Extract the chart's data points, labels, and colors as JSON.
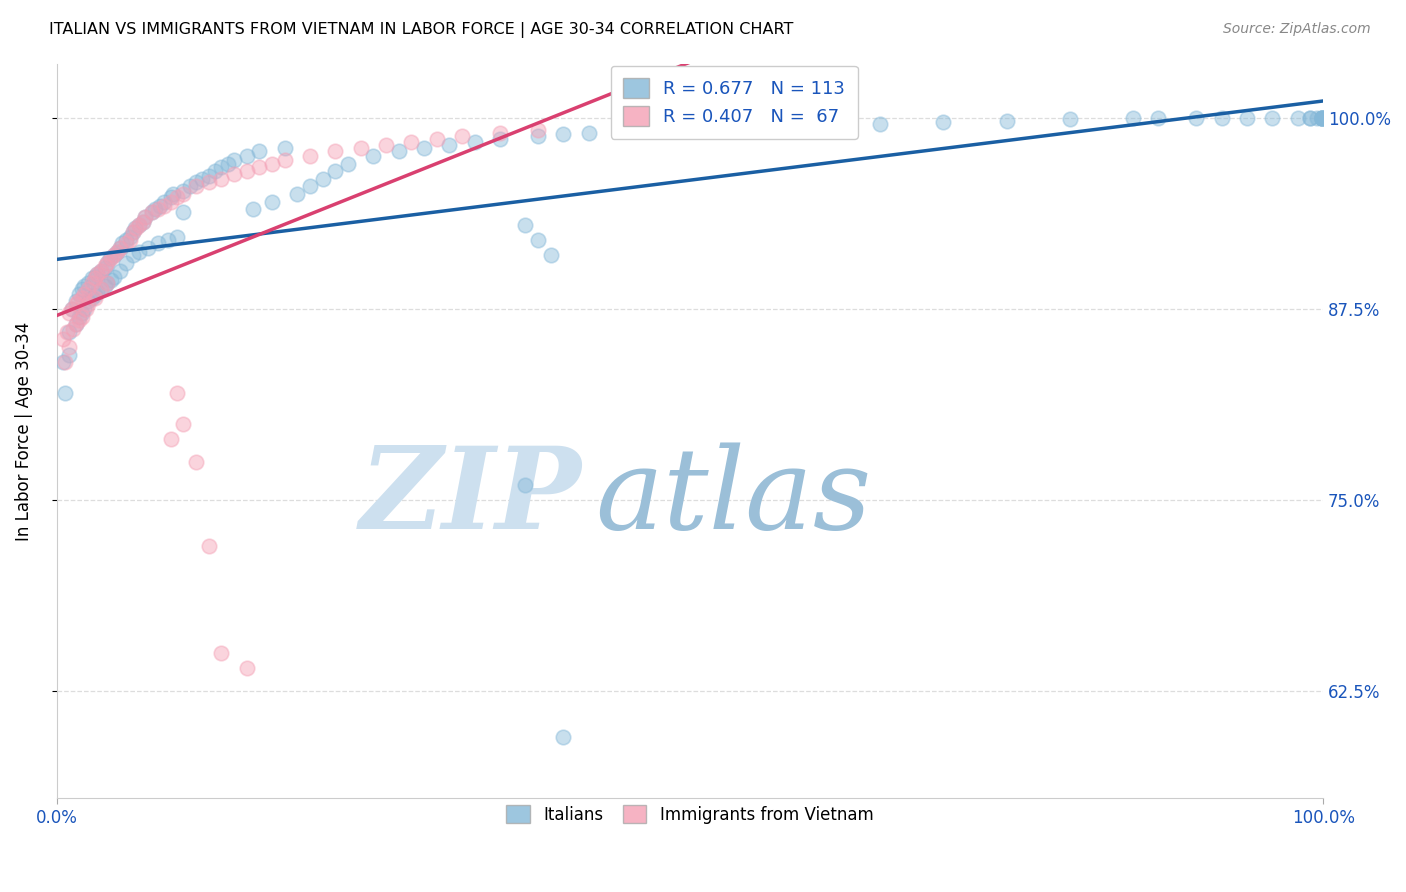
{
  "title": "ITALIAN VS IMMIGRANTS FROM VIETNAM IN LABOR FORCE | AGE 30-34 CORRELATION CHART",
  "source": "Source: ZipAtlas.com",
  "ylabel": "In Labor Force | Age 30-34",
  "ytick_vals": [
    0.625,
    0.75,
    0.875,
    1.0
  ],
  "ytick_labels": [
    "62.5%",
    "75.0%",
    "87.5%",
    "100.0%"
  ],
  "xtick_labels": [
    "0.0%",
    "100.0%"
  ],
  "legend_italians": "Italians",
  "legend_vietnam": "Immigrants from Vietnam",
  "blue_scatter_color": "#85b8d8",
  "pink_scatter_color": "#f4a0b5",
  "blue_line_color": "#1a5fa3",
  "pink_line_color": "#d94070",
  "legend_text_color": "#1a55bb",
  "axis_tick_color": "#1a55bb",
  "R_blue": 0.677,
  "N_blue": 113,
  "R_pink": 0.407,
  "N_pink": 67,
  "xlim": [
    0.0,
    1.0
  ],
  "ylim": [
    0.555,
    1.035
  ],
  "grid_color": "#dddddd",
  "blue_x": [
    0.005,
    0.007,
    0.01,
    0.01,
    0.012,
    0.015,
    0.015,
    0.018,
    0.018,
    0.02,
    0.02,
    0.022,
    0.022,
    0.025,
    0.025,
    0.028,
    0.028,
    0.03,
    0.03,
    0.032,
    0.032,
    0.035,
    0.035,
    0.038,
    0.038,
    0.04,
    0.04,
    0.042,
    0.043,
    0.045,
    0.045,
    0.048,
    0.05,
    0.05,
    0.052,
    0.055,
    0.055,
    0.058,
    0.06,
    0.06,
    0.062,
    0.065,
    0.065,
    0.068,
    0.07,
    0.072,
    0.075,
    0.078,
    0.08,
    0.082,
    0.085,
    0.088,
    0.09,
    0.092,
    0.095,
    0.1,
    0.1,
    0.105,
    0.11,
    0.115,
    0.12,
    0.125,
    0.13,
    0.135,
    0.14,
    0.15,
    0.155,
    0.16,
    0.17,
    0.18,
    0.19,
    0.2,
    0.21,
    0.22,
    0.23,
    0.25,
    0.27,
    0.29,
    0.31,
    0.33,
    0.35,
    0.38,
    0.4,
    0.42,
    0.45,
    0.48,
    0.51,
    0.6,
    0.65,
    0.7,
    0.75,
    0.8,
    0.85,
    0.87,
    0.9,
    0.92,
    0.94,
    0.96,
    0.98,
    0.99,
    0.99,
    0.995,
    0.999,
    0.999,
    0.999,
    0.999,
    0.999,
    0.999,
    0.37,
    0.37,
    0.38,
    0.39,
    0.4
  ],
  "blue_y": [
    0.84,
    0.82,
    0.86,
    0.845,
    0.875,
    0.88,
    0.865,
    0.885,
    0.87,
    0.888,
    0.872,
    0.89,
    0.875,
    0.892,
    0.88,
    0.895,
    0.882,
    0.896,
    0.884,
    0.898,
    0.886,
    0.9,
    0.888,
    0.902,
    0.89,
    0.905,
    0.892,
    0.908,
    0.894,
    0.91,
    0.896,
    0.912,
    0.915,
    0.9,
    0.918,
    0.92,
    0.905,
    0.922,
    0.925,
    0.91,
    0.928,
    0.93,
    0.912,
    0.932,
    0.935,
    0.915,
    0.938,
    0.94,
    0.918,
    0.942,
    0.945,
    0.92,
    0.948,
    0.95,
    0.922,
    0.952,
    0.938,
    0.955,
    0.958,
    0.96,
    0.962,
    0.965,
    0.968,
    0.97,
    0.972,
    0.975,
    0.94,
    0.978,
    0.945,
    0.98,
    0.95,
    0.955,
    0.96,
    0.965,
    0.97,
    0.975,
    0.978,
    0.98,
    0.982,
    0.984,
    0.986,
    0.988,
    0.989,
    0.99,
    0.992,
    0.993,
    0.994,
    0.995,
    0.996,
    0.997,
    0.998,
    0.999,
    1.0,
    1.0,
    1.0,
    1.0,
    1.0,
    1.0,
    1.0,
    1.0,
    1.0,
    1.0,
    1.0,
    1.0,
    1.0,
    1.0,
    1.0,
    1.0,
    0.76,
    0.93,
    0.92,
    0.91,
    0.595
  ],
  "pink_x": [
    0.005,
    0.007,
    0.008,
    0.01,
    0.01,
    0.012,
    0.013,
    0.015,
    0.015,
    0.017,
    0.018,
    0.02,
    0.02,
    0.022,
    0.023,
    0.025,
    0.025,
    0.028,
    0.03,
    0.03,
    0.032,
    0.035,
    0.035,
    0.038,
    0.04,
    0.04,
    0.043,
    0.045,
    0.048,
    0.05,
    0.055,
    0.058,
    0.06,
    0.063,
    0.065,
    0.068,
    0.07,
    0.075,
    0.08,
    0.085,
    0.09,
    0.095,
    0.1,
    0.11,
    0.12,
    0.13,
    0.14,
    0.15,
    0.16,
    0.17,
    0.18,
    0.2,
    0.22,
    0.24,
    0.26,
    0.28,
    0.3,
    0.32,
    0.35,
    0.38,
    0.09,
    0.095,
    0.1,
    0.11,
    0.12,
    0.13,
    0.15
  ],
  "pink_y": [
    0.855,
    0.84,
    0.86,
    0.872,
    0.85,
    0.875,
    0.862,
    0.878,
    0.865,
    0.88,
    0.868,
    0.882,
    0.87,
    0.885,
    0.875,
    0.888,
    0.878,
    0.892,
    0.895,
    0.882,
    0.898,
    0.9,
    0.888,
    0.903,
    0.905,
    0.892,
    0.908,
    0.91,
    0.912,
    0.915,
    0.918,
    0.92,
    0.925,
    0.928,
    0.93,
    0.932,
    0.935,
    0.938,
    0.94,
    0.942,
    0.945,
    0.948,
    0.95,
    0.955,
    0.958,
    0.96,
    0.963,
    0.965,
    0.968,
    0.97,
    0.972,
    0.975,
    0.978,
    0.98,
    0.982,
    0.984,
    0.986,
    0.988,
    0.99,
    0.992,
    0.79,
    0.82,
    0.8,
    0.775,
    0.72,
    0.65,
    0.64
  ]
}
